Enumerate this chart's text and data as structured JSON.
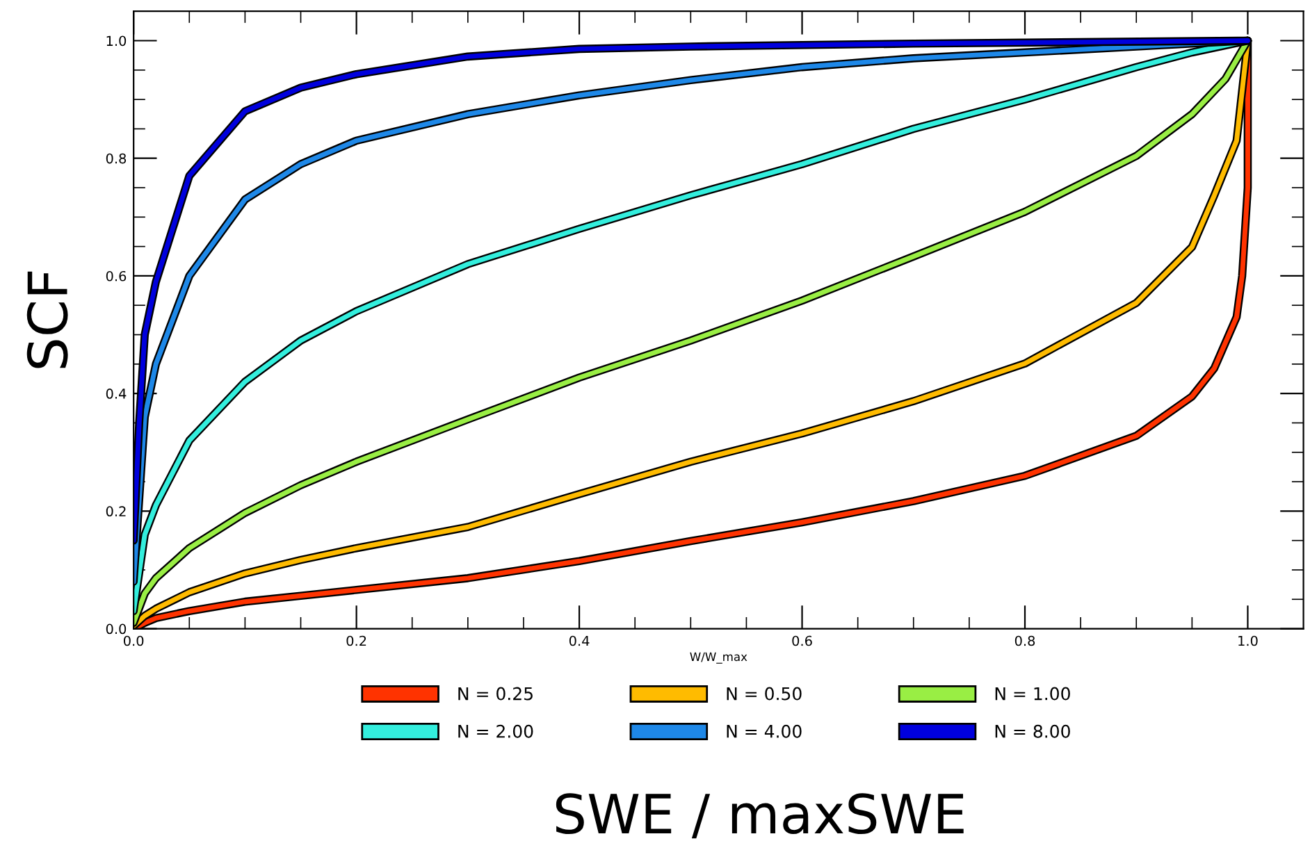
{
  "chart_data": {
    "type": "line",
    "xlabel": "W/W_max",
    "ylabel": "SCF",
    "annotations": [
      "SWE / maxSWE"
    ],
    "xlim": [
      0,
      1.05
    ],
    "ylim": [
      0,
      1.05
    ],
    "xticks": [
      {
        "value": 0,
        "label": "0.0"
      },
      {
        "value": 0.05,
        "label": null
      },
      {
        "value": 0.1,
        "label": null
      },
      {
        "value": 0.15,
        "label": null
      },
      0.2,
      {
        "value": 0.25,
        "label": null
      },
      {
        "value": 0.3,
        "label": null
      },
      {
        "value": 0.35,
        "label": null
      },
      0.4,
      {
        "value": 0.45,
        "label": null
      },
      {
        "value": 0.5,
        "label": null
      },
      {
        "value": 0.55,
        "label": null
      },
      0.6,
      {
        "value": 0.65,
        "label": null
      },
      {
        "value": 0.7,
        "label": null
      },
      {
        "value": 0.75,
        "label": null
      },
      0.8,
      {
        "value": 0.85,
        "label": null
      },
      {
        "value": 0.9,
        "label": null
      },
      {
        "value": 0.95,
        "label": null
      },
      {
        "value": 1,
        "label": "1.0"
      }
    ],
    "yticks": [
      {
        "value": 0,
        "label": "0.0"
      },
      {
        "value": 0.05,
        "label": null
      },
      {
        "value": 0.1,
        "label": null
      },
      {
        "value": 0.15,
        "label": null
      },
      0.2,
      {
        "value": 0.25,
        "label": null
      },
      {
        "value": 0.3,
        "label": null
      },
      {
        "value": 0.35,
        "label": null
      },
      0.4,
      {
        "value": 0.45,
        "label": null
      },
      {
        "value": 0.5,
        "label": null
      },
      {
        "value": 0.55,
        "label": null
      },
      0.6,
      {
        "value": 0.65,
        "label": null
      },
      {
        "value": 0.7,
        "label": null
      },
      {
        "value": 0.75,
        "label": null
      },
      0.8,
      {
        "value": 0.85,
        "label": null
      },
      {
        "value": 0.9,
        "label": null
      },
      {
        "value": 0.95,
        "label": null
      },
      {
        "value": 1,
        "label": "1.0"
      }
    ],
    "grid": false,
    "legend": "bottom",
    "marker": "none",
    "line_style": "solid",
    "series": [
      {
        "name": "N = 0.25",
        "color": "#ff3300",
        "x": [
          0,
          0.01,
          0.02,
          0.05,
          0.1,
          0.15,
          0.2,
          0.3,
          0.4,
          0.5,
          0.6,
          0.7,
          0.8,
          0.9,
          0.95,
          0.97,
          0.99,
          0.995,
          1.0,
          1.0
        ],
        "values": [
          0,
          0.01,
          0.018,
          0.03,
          0.046,
          0.056,
          0.066,
          0.086,
          0.115,
          0.149,
          0.181,
          0.217,
          0.26,
          0.328,
          0.395,
          0.443,
          0.53,
          0.6,
          0.75,
          1.0
        ]
      },
      {
        "name": "N = 0.50",
        "color": "#ffbb00",
        "x": [
          0,
          0.01,
          0.02,
          0.05,
          0.1,
          0.15,
          0.2,
          0.3,
          0.4,
          0.5,
          0.6,
          0.7,
          0.8,
          0.9,
          0.95,
          0.97,
          0.99,
          1.0
        ],
        "values": [
          0.005,
          0.022,
          0.034,
          0.062,
          0.094,
          0.117,
          0.137,
          0.173,
          0.229,
          0.284,
          0.332,
          0.387,
          0.451,
          0.554,
          0.649,
          0.737,
          0.83,
          1.0
        ]
      },
      {
        "name": "N = 1.00",
        "color": "#99ee44",
        "x": [
          0,
          0.01,
          0.02,
          0.05,
          0.1,
          0.15,
          0.2,
          0.3,
          0.4,
          0.5,
          0.6,
          0.7,
          0.8,
          0.9,
          0.95,
          0.98,
          1.0
        ],
        "values": [
          0.01,
          0.06,
          0.086,
          0.137,
          0.197,
          0.244,
          0.284,
          0.356,
          0.427,
          0.49,
          0.558,
          0.633,
          0.709,
          0.804,
          0.875,
          0.935,
          1.0
        ]
      },
      {
        "name": "N = 2.00",
        "color": "#33eedd",
        "x": [
          0,
          0.01,
          0.02,
          0.05,
          0.1,
          0.15,
          0.2,
          0.3,
          0.4,
          0.5,
          0.6,
          0.7,
          0.8,
          0.9,
          0.95,
          1.0
        ],
        "values": [
          0.03,
          0.16,
          0.21,
          0.32,
          0.42,
          0.49,
          0.54,
          0.62,
          0.68,
          0.737,
          0.79,
          0.85,
          0.9,
          0.955,
          0.98,
          1.0
        ]
      },
      {
        "name": "N = 4.00",
        "color": "#1e88e8",
        "x": [
          0,
          0.01,
          0.02,
          0.05,
          0.1,
          0.15,
          0.2,
          0.3,
          0.4,
          0.5,
          0.6,
          0.7,
          0.8,
          0.9,
          1.0
        ],
        "values": [
          0.08,
          0.36,
          0.45,
          0.6,
          0.73,
          0.79,
          0.83,
          0.875,
          0.907,
          0.933,
          0.955,
          0.97,
          0.98,
          0.99,
          1.0
        ]
      },
      {
        "name": "N = 8.00",
        "color": "#0000dd",
        "x": [
          0,
          0.005,
          0.01,
          0.02,
          0.05,
          0.1,
          0.15,
          0.2,
          0.3,
          0.4,
          0.5,
          0.7,
          1.0
        ],
        "values": [
          0.15,
          0.35,
          0.5,
          0.59,
          0.77,
          0.88,
          0.92,
          0.943,
          0.973,
          0.986,
          0.99,
          0.995,
          1.0
        ]
      }
    ]
  }
}
